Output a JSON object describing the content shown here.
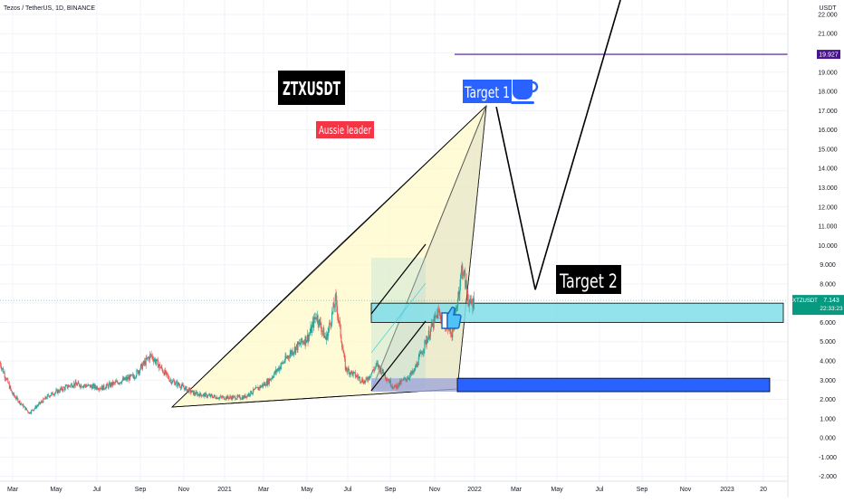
{
  "header": {
    "symbol_title": "Tezos / TetherUS, 1D, BINANCE"
  },
  "annotations": {
    "title": "ZTXUSDT",
    "subtitle": "Aussie leader",
    "target1": "Target 1",
    "target2": "Target 2"
  },
  "colors": {
    "up": "#26a69a",
    "down": "#ef5350",
    "triangle_fill": "#fff9c4",
    "cyan_box": "#80deea",
    "blue_box": "#2962ff",
    "purple_line": "#4a148c",
    "price_tag": "#26a69a",
    "label_red": "#f23645",
    "label_blue": "#2962ff"
  },
  "chart_data": {
    "type": "candlestick",
    "title": "Tezos / TetherUS, 1D, BINANCE",
    "price_scale_label": "USDT",
    "y_ticks": [
      "22.000",
      "21.000",
      "20.000",
      "19.000",
      "18.000",
      "17.000",
      "16.000",
      "15.000",
      "14.000",
      "13.000",
      "12.000",
      "11.000",
      "10.000",
      "9.000",
      "8.000",
      "7.000",
      "6.000",
      "5.000",
      "4.000",
      "3.000",
      "2.000",
      "1.000",
      "0.000",
      "-1.000",
      "-2.000"
    ],
    "x_ticks": [
      "Mar",
      "May",
      "Jul",
      "Sep",
      "Nov",
      "2021",
      "Mar",
      "May",
      "Jul",
      "Sep",
      "Nov",
      "2022",
      "Mar",
      "May",
      "Jul",
      "Sep",
      "Nov",
      "2023",
      "20"
    ],
    "ylim": [
      -2.25,
      22.75
    ],
    "current_price": {
      "symbol": "XTZUSDT",
      "price": "7.143",
      "countdown": "22:33:23"
    },
    "horizontal_line": {
      "value": 19.927,
      "label": "19.927"
    },
    "price_path": [
      {
        "x": 2020.0,
        "y": 3.9
      },
      {
        "x": 2020.05,
        "y": 2.3
      },
      {
        "x": 2020.12,
        "y": 1.3
      },
      {
        "x": 2020.2,
        "y": 2.2
      },
      {
        "x": 2020.3,
        "y": 2.8
      },
      {
        "x": 2020.42,
        "y": 2.6
      },
      {
        "x": 2020.55,
        "y": 3.2
      },
      {
        "x": 2020.62,
        "y": 4.3
      },
      {
        "x": 2020.7,
        "y": 3.0
      },
      {
        "x": 2020.8,
        "y": 2.3
      },
      {
        "x": 2020.9,
        "y": 2.1
      },
      {
        "x": 2021.0,
        "y": 2.1
      },
      {
        "x": 2021.1,
        "y": 2.9
      },
      {
        "x": 2021.2,
        "y": 4.5
      },
      {
        "x": 2021.27,
        "y": 5.3
      },
      {
        "x": 2021.3,
        "y": 6.4
      },
      {
        "x": 2021.34,
        "y": 5.1
      },
      {
        "x": 2021.38,
        "y": 7.2
      },
      {
        "x": 2021.42,
        "y": 3.6
      },
      {
        "x": 2021.5,
        "y": 2.9
      },
      {
        "x": 2021.55,
        "y": 3.8
      },
      {
        "x": 2021.62,
        "y": 2.6
      },
      {
        "x": 2021.7,
        "y": 3.4
      },
      {
        "x": 2021.75,
        "y": 5.0
      },
      {
        "x": 2021.8,
        "y": 6.5
      },
      {
        "x": 2021.86,
        "y": 5.4
      },
      {
        "x": 2021.9,
        "y": 8.9
      },
      {
        "x": 2021.93,
        "y": 6.9
      },
      {
        "x": 2021.95,
        "y": 7.1
      }
    ],
    "projection_path": [
      {
        "x": 2022.04,
        "y": 17.2
      },
      {
        "x": 2022.2,
        "y": 7.7
      },
      {
        "x": 2022.55,
        "y": 22.75
      }
    ],
    "zones": [
      {
        "name": "cyan",
        "y_low": 6.0,
        "y_high": 7.0
      },
      {
        "name": "blue",
        "y_low": 2.4,
        "y_high": 3.1
      }
    ]
  }
}
